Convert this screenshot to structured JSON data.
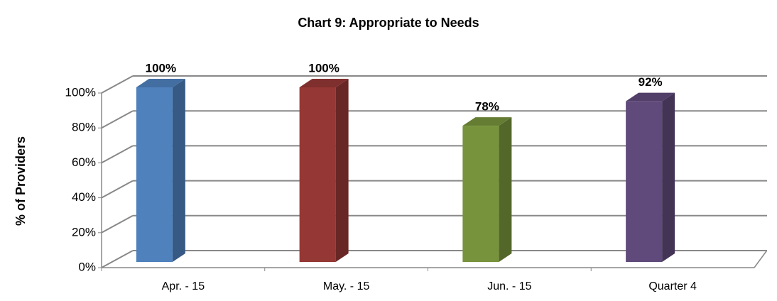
{
  "chart_data": {
    "type": "bar3d",
    "title": "Chart 9: Appropriate to Needs",
    "y_axis_label": "% of Providers",
    "categories": [
      "Apr. - 15",
      "May. - 15",
      "Jun. - 15",
      "Quarter 4"
    ],
    "values": [
      100,
      100,
      78,
      92
    ],
    "value_labels": [
      "100%",
      "100%",
      "78%",
      "92%"
    ],
    "colors": [
      "#4f81bd",
      "#953735",
      "#77933c",
      "#604a7b"
    ],
    "ylim": [
      0,
      100
    ],
    "yticks": [
      {
        "value": 0,
        "label": "0%"
      },
      {
        "value": 20,
        "label": "20%"
      },
      {
        "value": 40,
        "label": "40%"
      },
      {
        "value": 60,
        "label": "60%"
      },
      {
        "value": 80,
        "label": "80%"
      },
      {
        "value": 100,
        "label": "100%"
      }
    ],
    "grid": true
  }
}
